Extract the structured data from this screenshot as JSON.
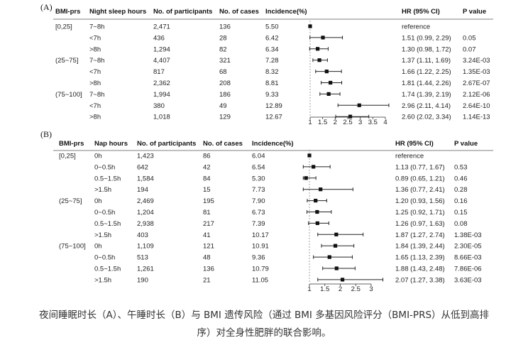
{
  "caption": {
    "line1": "夜间睡眠时长（A）、午睡时长（B）与 BMI 遗传风险（通过 BMI 多基因风险评分（BMI-PRS）从低到高排",
    "line2": "序）对全身性肥胖的联合影响。"
  },
  "chart_data": [
    {
      "type": "forest",
      "panel_label": "(A)",
      "columns": [
        "BMI-prs",
        "Night sleep hours",
        "No. of participants",
        "No. of cases",
        "Incidence(%)",
        "HR (95% CI)",
        "P value"
      ],
      "x_ticks": [
        "1",
        "1.5",
        "2",
        "2.5",
        "3",
        "3.5",
        "4"
      ],
      "xlim": [
        1,
        4
      ],
      "reference_line": 1,
      "rows": [
        {
          "group": "[0,25]",
          "level": "7~8h",
          "participants": "2,471",
          "cases": "136",
          "incidence": "5.50",
          "hr": 1.0,
          "lo": null,
          "hi": null,
          "hr_text": "reference",
          "p": ""
        },
        {
          "group": "",
          "level": "<7h",
          "participants": "436",
          "cases": "28",
          "incidence": "6.42",
          "hr": 1.51,
          "lo": 0.99,
          "hi": 2.29,
          "hr_text": "1.51 (0.99, 2.29)",
          "p": "0.05"
        },
        {
          "group": "",
          "level": ">8h",
          "participants": "1,294",
          "cases": "82",
          "incidence": "6.34",
          "hr": 1.3,
          "lo": 0.98,
          "hi": 1.72,
          "hr_text": "1.30 (0.98, 1.72)",
          "p": "0.07"
        },
        {
          "group": "(25~75]",
          "level": "7~8h",
          "participants": "4,407",
          "cases": "321",
          "incidence": "7.28",
          "hr": 1.37,
          "lo": 1.11,
          "hi": 1.69,
          "hr_text": "1.37 (1.11, 1.69)",
          "p": "3.24E-03"
        },
        {
          "group": "",
          "level": "<7h",
          "participants": "817",
          "cases": "68",
          "incidence": "8.32",
          "hr": 1.66,
          "lo": 1.22,
          "hi": 2.25,
          "hr_text": "1.66 (1.22, 2.25)",
          "p": "1.35E-03"
        },
        {
          "group": "",
          "level": ">8h",
          "participants": "2,362",
          "cases": "208",
          "incidence": "8.81",
          "hr": 1.81,
          "lo": 1.44,
          "hi": 2.26,
          "hr_text": "1.81 (1.44, 2.26)",
          "p": "2.67E-07"
        },
        {
          "group": "(75~100]",
          "level": "7~8h",
          "participants": "1,994",
          "cases": "186",
          "incidence": "9.33",
          "hr": 1.74,
          "lo": 1.39,
          "hi": 2.19,
          "hr_text": "1.74 (1.39, 2.19)",
          "p": "2.12E-06"
        },
        {
          "group": "",
          "level": "<7h",
          "participants": "380",
          "cases": "49",
          "incidence": "12.89",
          "hr": 2.96,
          "lo": 2.11,
          "hi": 4.14,
          "hr_text": "2.96 (2.11, 4.14)",
          "p": "2.64E-10"
        },
        {
          "group": "",
          "level": ">8h",
          "participants": "1,018",
          "cases": "129",
          "incidence": "12.67",
          "hr": 2.6,
          "lo": 2.02,
          "hi": 3.34,
          "hr_text": "2.60 (2.02, 3.34)",
          "p": "1.14E-13"
        }
      ]
    },
    {
      "type": "forest",
      "panel_label": "(B)",
      "columns": [
        "BMI-prs",
        "Nap hours",
        "No. of participants",
        "No. of cases",
        "Incidence(%)",
        "HR (95% CI)",
        "P value"
      ],
      "x_ticks": [
        "1",
        "1.5",
        "2",
        "2.5",
        "3"
      ],
      "xlim": [
        1,
        3
      ],
      "reference_line": 1,
      "rows": [
        {
          "group": "[0,25]",
          "level": "0h",
          "participants": "1,423",
          "cases": "86",
          "incidence": "6.04",
          "hr": 1.0,
          "lo": null,
          "hi": null,
          "hr_text": "reference",
          "p": ""
        },
        {
          "group": "",
          "level": "0~0.5h",
          "participants": "642",
          "cases": "42",
          "incidence": "6.54",
          "hr": 1.13,
          "lo": 0.77,
          "hi": 1.67,
          "hr_text": "1.13 (0.77, 1.67)",
          "p": "0.53"
        },
        {
          "group": "",
          "level": "0.5~1.5h",
          "participants": "1,584",
          "cases": "84",
          "incidence": "5.30",
          "hr": 0.89,
          "lo": 0.65,
          "hi": 1.21,
          "hr_text": "0.89 (0.65, 1.21)",
          "p": "0.46"
        },
        {
          "group": "",
          "level": ">1.5h",
          "participants": "194",
          "cases": "15",
          "incidence": "7.73",
          "hr": 1.36,
          "lo": 0.77,
          "hi": 2.41,
          "hr_text": "1.36 (0.77, 2.41)",
          "p": "0.28"
        },
        {
          "group": "(25~75]",
          "level": "0h",
          "participants": "2,469",
          "cases": "195",
          "incidence": "7.90",
          "hr": 1.2,
          "lo": 0.93,
          "hi": 1.56,
          "hr_text": "1.20 (0.93, 1.56)",
          "p": "0.16"
        },
        {
          "group": "",
          "level": "0~0.5h",
          "participants": "1,204",
          "cases": "81",
          "incidence": "6.73",
          "hr": 1.25,
          "lo": 0.92,
          "hi": 1.71,
          "hr_text": "1.25 (0.92, 1.71)",
          "p": "0.15"
        },
        {
          "group": "",
          "level": "0.5~1.5h",
          "participants": "2,938",
          "cases": "217",
          "incidence": "7.39",
          "hr": 1.26,
          "lo": 0.97,
          "hi": 1.63,
          "hr_text": "1.26 (0.97, 1.63)",
          "p": "0.08"
        },
        {
          "group": "",
          "level": ">1.5h",
          "participants": "403",
          "cases": "41",
          "incidence": "10.17",
          "hr": 1.87,
          "lo": 1.27,
          "hi": 2.74,
          "hr_text": "1.87 (1.27, 2.74)",
          "p": "1.38E-03"
        },
        {
          "group": "(75~100]",
          "level": "0h",
          "participants": "1,109",
          "cases": "121",
          "incidence": "10.91",
          "hr": 1.84,
          "lo": 1.39,
          "hi": 2.44,
          "hr_text": "1.84 (1.39, 2.44)",
          "p": "2.30E-05"
        },
        {
          "group": "",
          "level": "0~0.5h",
          "participants": "513",
          "cases": "48",
          "incidence": "9.36",
          "hr": 1.65,
          "lo": 1.13,
          "hi": 2.39,
          "hr_text": "1.65 (1.13, 2.39)",
          "p": "8.66E-03"
        },
        {
          "group": "",
          "level": "0.5~1.5h",
          "participants": "1,261",
          "cases": "136",
          "incidence": "10.79",
          "hr": 1.88,
          "lo": 1.43,
          "hi": 2.48,
          "hr_text": "1.88 (1.43, 2.48)",
          "p": "7.86E-06"
        },
        {
          "group": "",
          "level": ">1.5h",
          "participants": "190",
          "cases": "21",
          "incidence": "11.05",
          "hr": 2.07,
          "lo": 1.27,
          "hi": 3.38,
          "hr_text": "2.07 (1.27, 3.38)",
          "p": "3.63E-03"
        }
      ]
    }
  ]
}
